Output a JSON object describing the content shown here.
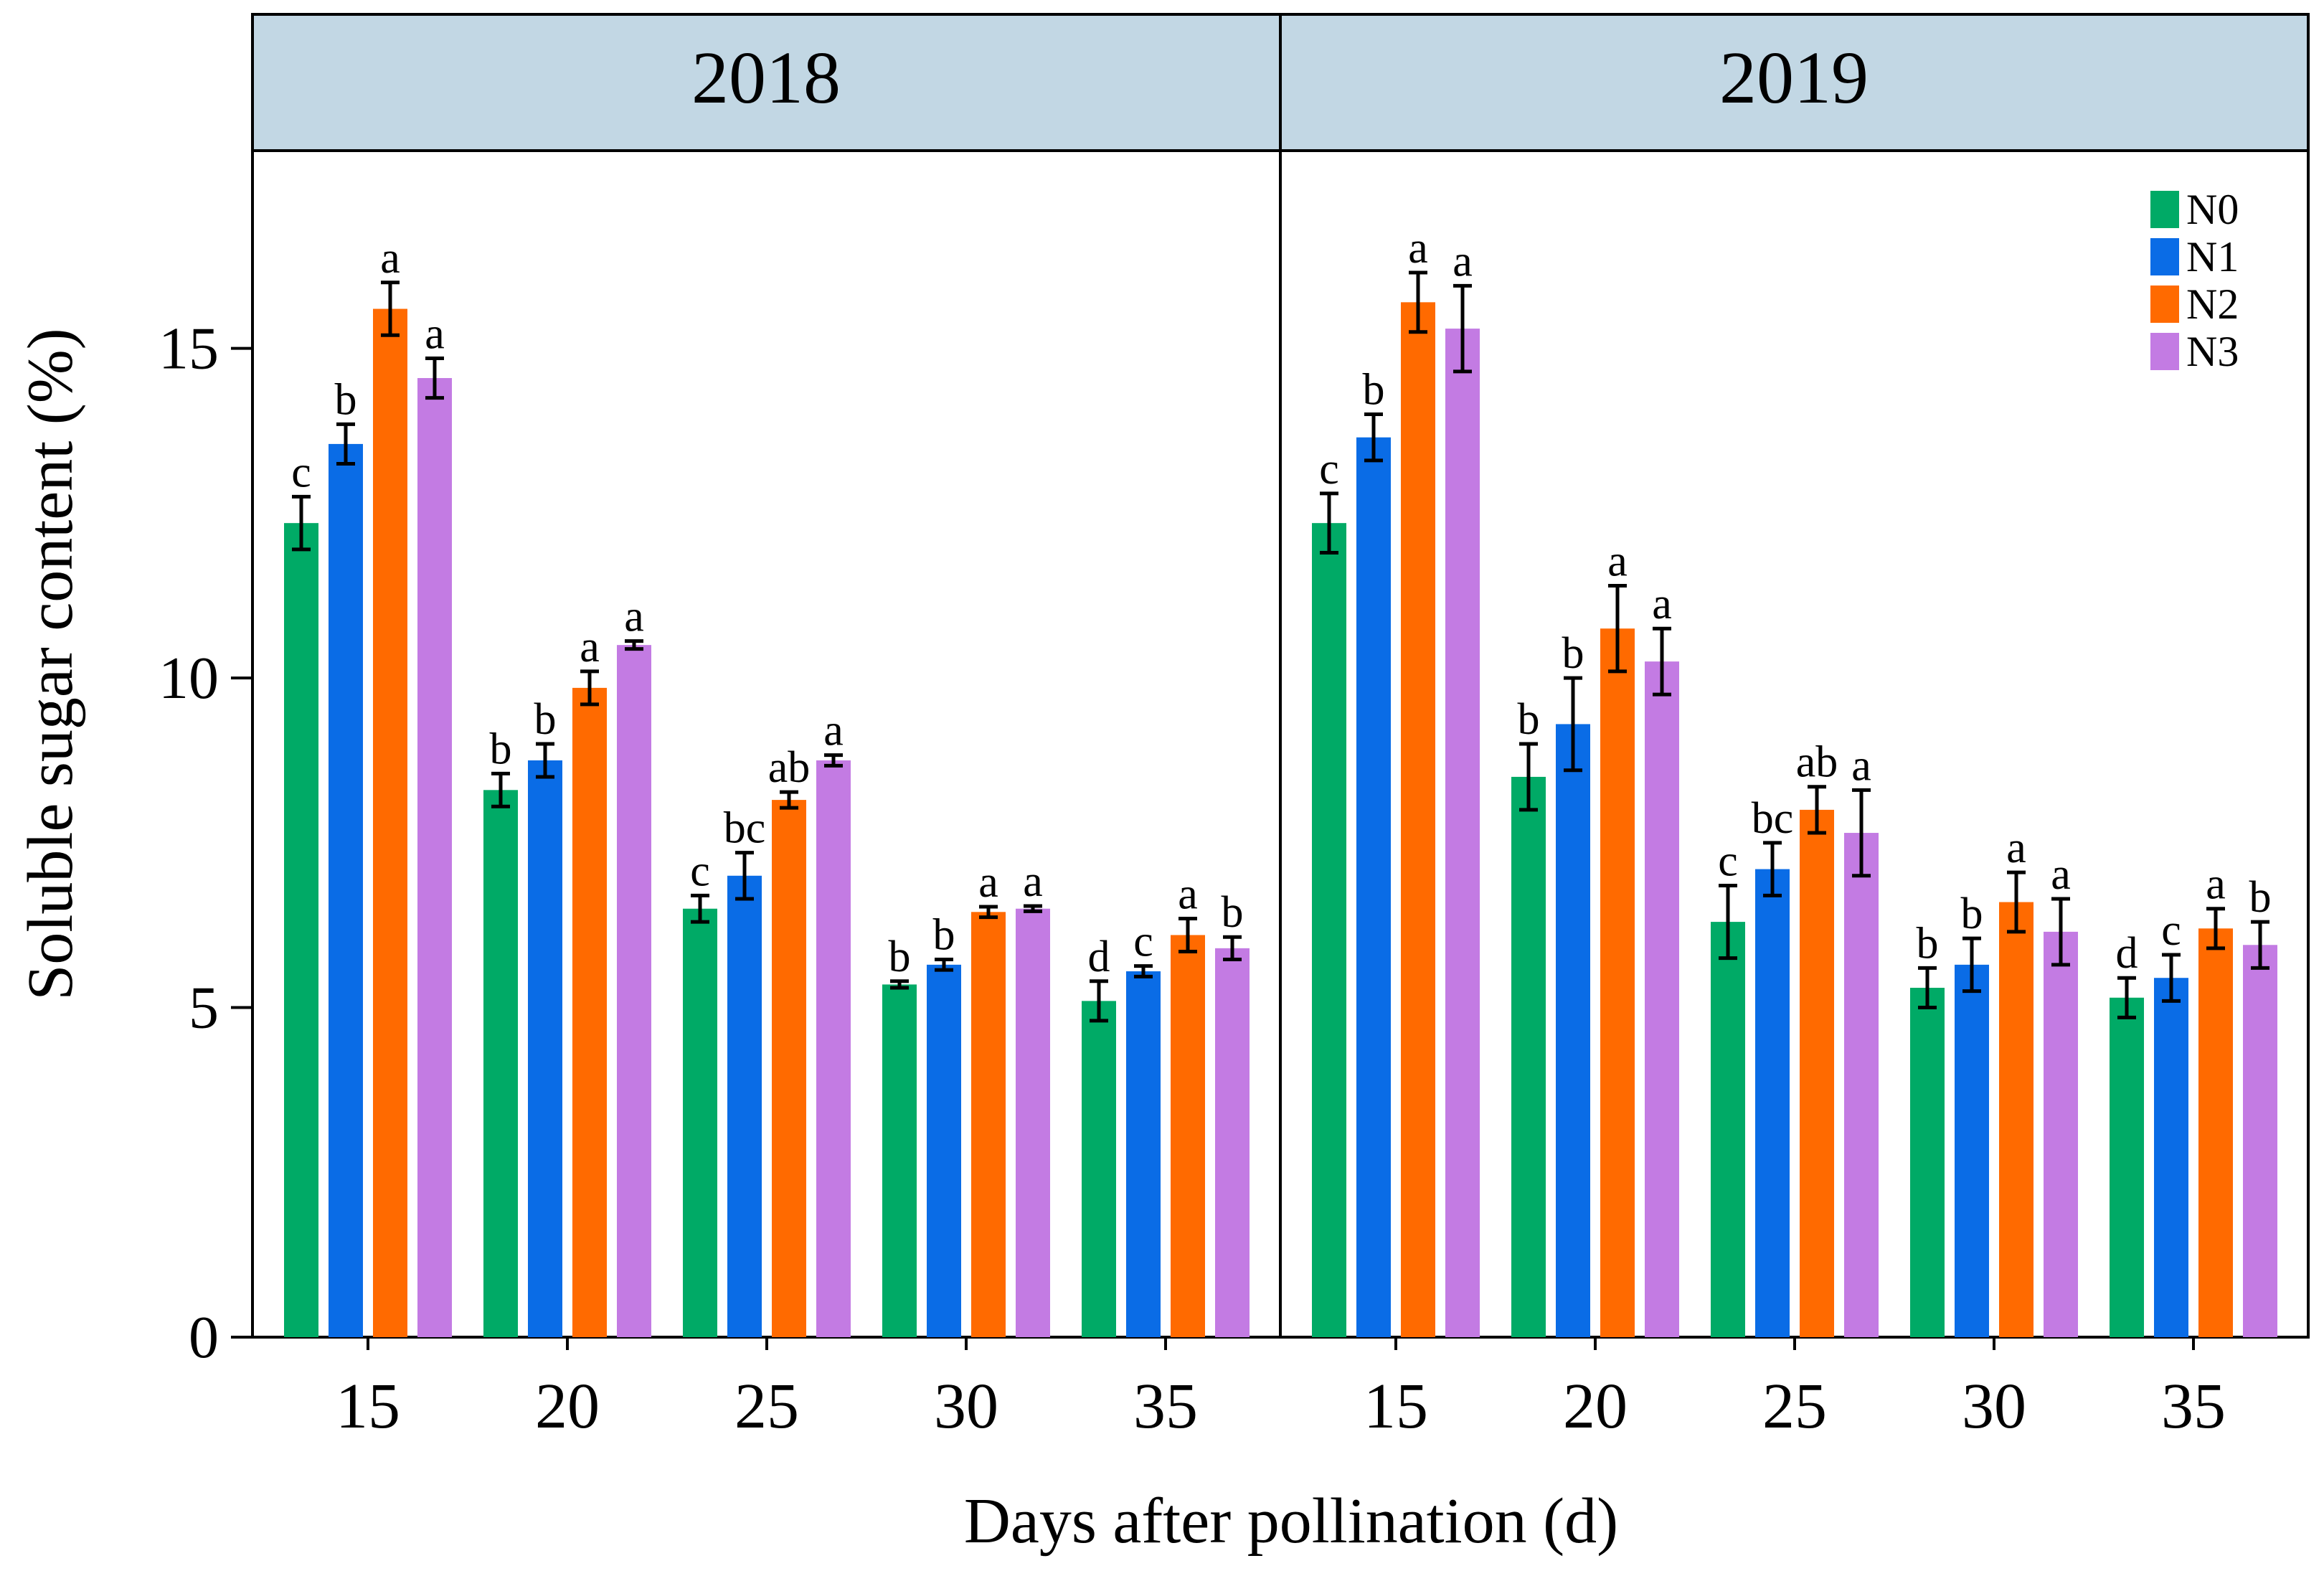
{
  "chart_data": {
    "type": "bar",
    "ylabel": "Soluble sugar content (%)",
    "xlabel": "Days after pollination (d)",
    "ylim": [
      0,
      18
    ],
    "yticks": [
      0,
      5,
      10,
      15
    ],
    "categories": [
      "15",
      "20",
      "25",
      "30",
      "35"
    ],
    "legend": {
      "position": "top-right",
      "entries": [
        {
          "name": "N0",
          "color": "#00AA66"
        },
        {
          "name": "N1",
          "color": "#0A6CE6"
        },
        {
          "name": "N2",
          "color": "#FF6A00"
        },
        {
          "name": "N3",
          "color": "#C37BE3"
        }
      ]
    },
    "panels": [
      {
        "title": "2018",
        "series": [
          {
            "name": "N0",
            "values": [
              12.35,
              8.3,
              6.5,
              5.35,
              5.1
            ],
            "errors": [
              0.4,
              0.25,
              0.2,
              0.05,
              0.3
            ],
            "labels": [
              "c",
              "b",
              "c",
              "b",
              "d"
            ]
          },
          {
            "name": "N1",
            "values": [
              13.55,
              8.75,
              7.0,
              5.65,
              5.55
            ],
            "errors": [
              0.3,
              0.25,
              0.35,
              0.08,
              0.08
            ],
            "labels": [
              "b",
              "b",
              "bc",
              "b",
              "c"
            ]
          },
          {
            "name": "N2",
            "values": [
              15.6,
              9.85,
              8.15,
              6.45,
              6.1
            ],
            "errors": [
              0.4,
              0.25,
              0.12,
              0.08,
              0.25
            ],
            "labels": [
              "a",
              "a",
              "ab",
              "a",
              "a"
            ]
          },
          {
            "name": "N3",
            "values": [
              14.55,
              10.5,
              8.75,
              6.5,
              5.9
            ],
            "errors": [
              0.3,
              0.06,
              0.08,
              0.04,
              0.17
            ],
            "labels": [
              "a",
              "a",
              "a",
              "a",
              "b"
            ]
          }
        ]
      },
      {
        "title": "2019",
        "series": [
          {
            "name": "N0",
            "values": [
              12.35,
              8.5,
              6.3,
              5.3,
              5.15
            ],
            "errors": [
              0.45,
              0.5,
              0.55,
              0.3,
              0.3
            ],
            "labels": [
              "c",
              "b",
              "c",
              "b",
              "d"
            ]
          },
          {
            "name": "N1",
            "values": [
              13.65,
              9.3,
              7.1,
              5.65,
              5.45
            ],
            "errors": [
              0.35,
              0.7,
              0.4,
              0.4,
              0.35
            ],
            "labels": [
              "b",
              "b",
              "bc",
              "b",
              "c"
            ]
          },
          {
            "name": "N2",
            "values": [
              15.7,
              10.75,
              8.0,
              6.6,
              6.2
            ],
            "errors": [
              0.45,
              0.65,
              0.35,
              0.45,
              0.3
            ],
            "labels": [
              "a",
              "a",
              "ab",
              "a",
              "a"
            ]
          },
          {
            "name": "N3",
            "values": [
              15.3,
              10.25,
              7.65,
              6.15,
              5.95
            ],
            "errors": [
              0.65,
              0.5,
              0.65,
              0.5,
              0.35
            ],
            "labels": [
              "a",
              "a",
              "a",
              "a",
              "b"
            ]
          }
        ]
      }
    ]
  }
}
